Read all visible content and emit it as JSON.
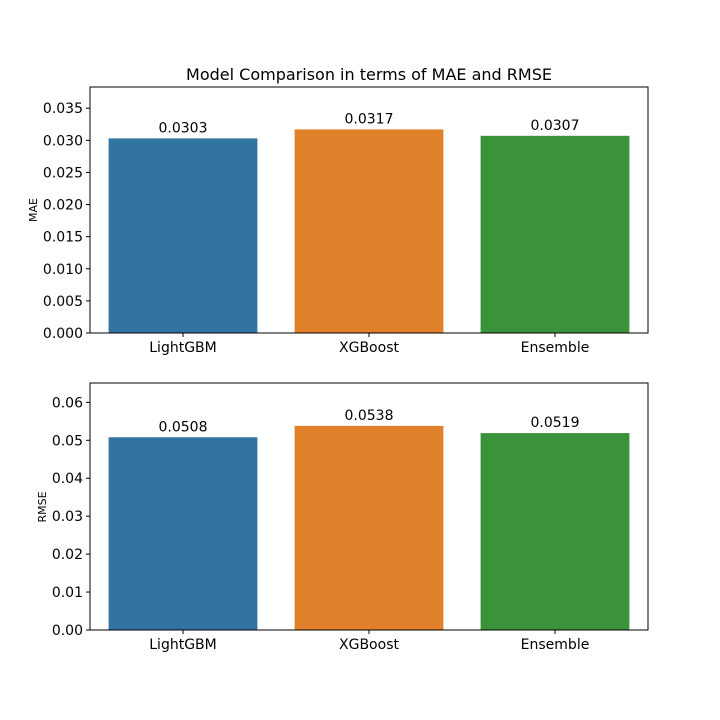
{
  "chart_data": [
    {
      "type": "bar",
      "title": "Model Comparison in terms of MAE and RMSE",
      "xlabel": "",
      "ylabel": "MAE",
      "categories": [
        "LightGBM",
        "XGBoost",
        "Ensemble"
      ],
      "values": [
        0.0303,
        0.0317,
        0.0307
      ],
      "data_labels": [
        "0.0303",
        "0.0317",
        "0.0307"
      ],
      "colors": [
        "#3274a1",
        "#e1812c",
        "#3a923a"
      ],
      "ylim": [
        0,
        0.0383
      ],
      "yticks": [
        0.0,
        0.005,
        0.01,
        0.015,
        0.02,
        0.025,
        0.03,
        0.035
      ],
      "ytick_labels": [
        "0.000",
        "0.005",
        "0.010",
        "0.015",
        "0.020",
        "0.025",
        "0.030",
        "0.035"
      ],
      "grid": false
    },
    {
      "type": "bar",
      "title": "",
      "xlabel": "",
      "ylabel": "RMSE",
      "categories": [
        "LightGBM",
        "XGBoost",
        "Ensemble"
      ],
      "values": [
        0.0508,
        0.0538,
        0.0519
      ],
      "data_labels": [
        "0.0508",
        "0.0538",
        "0.0519"
      ],
      "colors": [
        "#3274a1",
        "#e1812c",
        "#3a923a"
      ],
      "ylim": [
        0,
        0.0651
      ],
      "yticks": [
        0.0,
        0.01,
        0.02,
        0.03,
        0.04,
        0.05,
        0.06
      ],
      "ytick_labels": [
        "0.00",
        "0.01",
        "0.02",
        "0.03",
        "0.04",
        "0.05",
        "0.06"
      ],
      "grid": false
    }
  ]
}
